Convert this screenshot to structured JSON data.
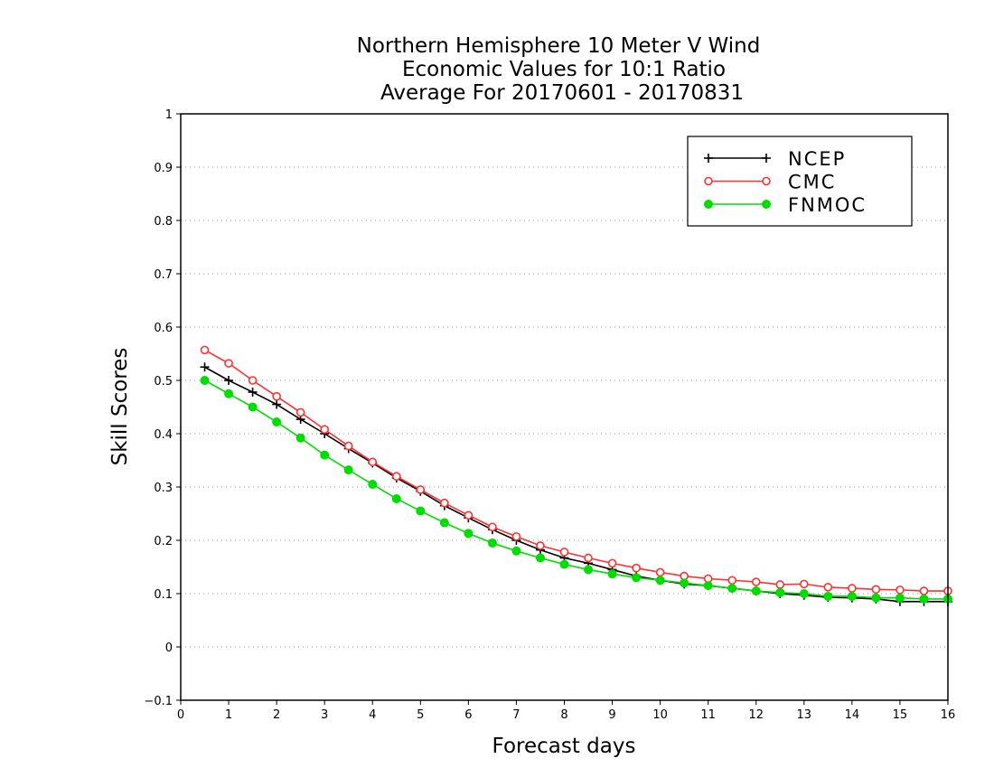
{
  "chart_data": {
    "type": "line",
    "title": [
      "Northern Hemisphere 10 Meter V Wind",
      "Economic Values for 10:1 Ratio",
      "Average For 20170601 - 20170831"
    ],
    "xlabel": "Forecast days",
    "ylabel": "Skill Scores",
    "xlim": [
      0,
      16
    ],
    "ylim": [
      -0.1,
      1
    ],
    "x_ticks": [
      0,
      1,
      2,
      3,
      4,
      5,
      6,
      7,
      8,
      9,
      10,
      11,
      12,
      13,
      14,
      15,
      16
    ],
    "x_tick_labels": [
      "0",
      "1",
      "2",
      "3",
      "4",
      "5",
      "6",
      "7",
      "8",
      "9",
      "10",
      "11",
      "12",
      "13",
      "14",
      "15",
      "16"
    ],
    "y_ticks": [
      -0.1,
      0,
      0.1,
      0.2,
      0.3,
      0.4,
      0.5,
      0.6,
      0.7,
      0.8,
      0.9,
      1
    ],
    "y_tick_labels": [
      "−0.1",
      "0",
      "0.1",
      "0.2",
      "0.3",
      "0.4",
      "0.5",
      "0.6",
      "0.7",
      "0.8",
      "0.9",
      "1"
    ],
    "grid": "horizontal dotted",
    "legend_position": "top-right",
    "x": [
      0.5,
      1,
      1.5,
      2,
      2.5,
      3,
      3.5,
      4,
      4.5,
      5,
      5.5,
      6,
      6.5,
      7,
      7.5,
      8,
      8.5,
      9,
      9.5,
      10,
      10.5,
      11,
      11.5,
      12,
      12.5,
      13,
      13.5,
      14,
      14.5,
      15,
      15.5,
      16
    ],
    "series": [
      {
        "name": "NCEP",
        "color": "#000000",
        "marker": "plus",
        "values": [
          0.525,
          0.5,
          0.478,
          0.455,
          0.427,
          0.4,
          0.372,
          0.345,
          0.317,
          0.292,
          0.265,
          0.242,
          0.22,
          0.2,
          0.182,
          0.167,
          0.157,
          0.145,
          0.133,
          0.125,
          0.118,
          0.115,
          0.11,
          0.105,
          0.1,
          0.097,
          0.093,
          0.092,
          0.09,
          0.085,
          0.085,
          0.085
        ]
      },
      {
        "name": "CMC",
        "color": "#ff3030",
        "marker": "open-circle",
        "values": [
          0.557,
          0.532,
          0.5,
          0.47,
          0.44,
          0.408,
          0.377,
          0.347,
          0.32,
          0.295,
          0.27,
          0.247,
          0.225,
          0.207,
          0.19,
          0.178,
          0.167,
          0.157,
          0.148,
          0.14,
          0.133,
          0.128,
          0.125,
          0.122,
          0.117,
          0.118,
          0.112,
          0.11,
          0.108,
          0.107,
          0.105,
          0.105
        ]
      },
      {
        "name": "FNMOC",
        "color": "#00dd00",
        "marker": "filled-circle",
        "values": [
          0.5,
          0.475,
          0.45,
          0.422,
          0.392,
          0.36,
          0.332,
          0.305,
          0.278,
          0.255,
          0.233,
          0.213,
          0.195,
          0.18,
          0.167,
          0.155,
          0.145,
          0.137,
          0.13,
          0.125,
          0.12,
          0.115,
          0.11,
          0.105,
          0.102,
          0.1,
          0.095,
          0.095,
          0.092,
          0.092,
          0.09,
          0.09
        ]
      }
    ]
  }
}
